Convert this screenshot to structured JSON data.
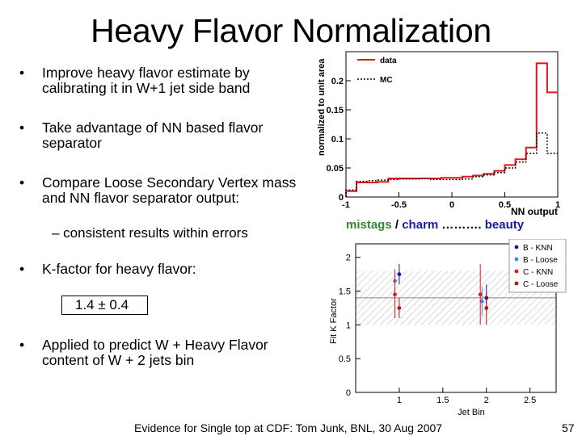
{
  "title": "Heavy Flavor Normalization",
  "bullets": [
    "Improve heavy flavor estimate by calibrating it in W+1 jet side band",
    "Take advantage of NN based flavor separator",
    "Compare Loose Secondary Vertex mass and NN flavor separator output:",
    "K-factor for heavy flavor:",
    "Applied to predict W + Heavy Flavor content of W + 2 jets bin"
  ],
  "bullet_symbol": "•",
  "sub_bullet": "– consistent results within errors",
  "kfactor_value": "1.4 ± 0.4",
  "caption": {
    "part1": "mistags",
    "sep1": " / ",
    "part2": "charm",
    "sep2": " ………. ",
    "part3": "beauty",
    "colors": {
      "mistags": "#2e8b2e",
      "charm": "#1a1aa0",
      "beauty": "#1a1aa0",
      "sep": "#000000"
    }
  },
  "footer": "Evidence for Single top at CDF: Tom Junk, BNL, 30 Aug 2007",
  "page_number": "57",
  "chart_data": [
    {
      "type": "line",
      "title": "",
      "xlabel": "NN output",
      "ylabel": "normalized to unit area",
      "xlim": [
        -1,
        1
      ],
      "ylim": [
        0,
        0.25
      ],
      "x_ticks": [
        "-1",
        "-0.5",
        "0",
        "0.5",
        "1"
      ],
      "y_ticks": [
        "0",
        "0.05",
        "0.1",
        "0.15",
        "0.2"
      ],
      "bin_edges": [
        -1,
        -0.9,
        -0.8,
        -0.7,
        -0.6,
        -0.5,
        -0.4,
        -0.3,
        -0.2,
        -0.1,
        0,
        0.1,
        0.2,
        0.3,
        0.4,
        0.5,
        0.6,
        0.7,
        0.8,
        0.9,
        1
      ],
      "series": [
        {
          "name": "data",
          "color": "#e8141c",
          "style": "solid",
          "values": [
            0.01,
            0.025,
            0.025,
            0.026,
            0.032,
            0.032,
            0.032,
            0.032,
            0.032,
            0.033,
            0.033,
            0.035,
            0.037,
            0.04,
            0.045,
            0.055,
            0.065,
            0.085,
            0.23,
            0.18
          ]
        },
        {
          "name": "MC",
          "color": "#000000",
          "style": "dotted",
          "values": [
            0.012,
            0.027,
            0.028,
            0.029,
            0.03,
            0.031,
            0.031,
            0.032,
            0.03,
            0.03,
            0.03,
            0.031,
            0.035,
            0.038,
            0.042,
            0.05,
            0.06,
            0.075,
            0.11,
            0.075
          ]
        }
      ]
    },
    {
      "type": "scatter",
      "title": "",
      "xlabel": "Jet Bin",
      "ylabel": "Fit K Factor",
      "xlim": [
        0.5,
        2.8
      ],
      "ylim": [
        0,
        2.2
      ],
      "x_ticks": [
        "1",
        "1.5",
        "2",
        "2.5"
      ],
      "y_ticks": [
        "0",
        "0.5",
        "1",
        "1.5",
        "2"
      ],
      "band": {
        "center": 1.4,
        "low": 1.0,
        "high": 1.8
      },
      "series": [
        {
          "name": "B - KNN",
          "color": "#1a1aa0",
          "points": [
            {
              "x": 1.0,
              "y": 1.75,
              "err": 0.15
            },
            {
              "x": 2.0,
              "y": 1.4,
              "err": 0.2
            }
          ]
        },
        {
          "name": "B - Loose",
          "color": "#5080e0",
          "points": [
            {
              "x": 0.95,
              "y": 1.65,
              "err": 0.18
            },
            {
              "x": 1.95,
              "y": 1.35,
              "err": 0.22
            }
          ]
        },
        {
          "name": "C - KNN",
          "color": "#e8141c",
          "points": [
            {
              "x": 0.95,
              "y": 1.45,
              "err": 0.35
            },
            {
              "x": 1.93,
              "y": 1.45,
              "err": 0.45
            }
          ]
        },
        {
          "name": "C - Loose",
          "color": "#c01010",
          "points": [
            {
              "x": 1.0,
              "y": 1.25,
              "err": 0.15
            },
            {
              "x": 2.0,
              "y": 1.25,
              "err": 0.25
            }
          ]
        }
      ]
    }
  ]
}
